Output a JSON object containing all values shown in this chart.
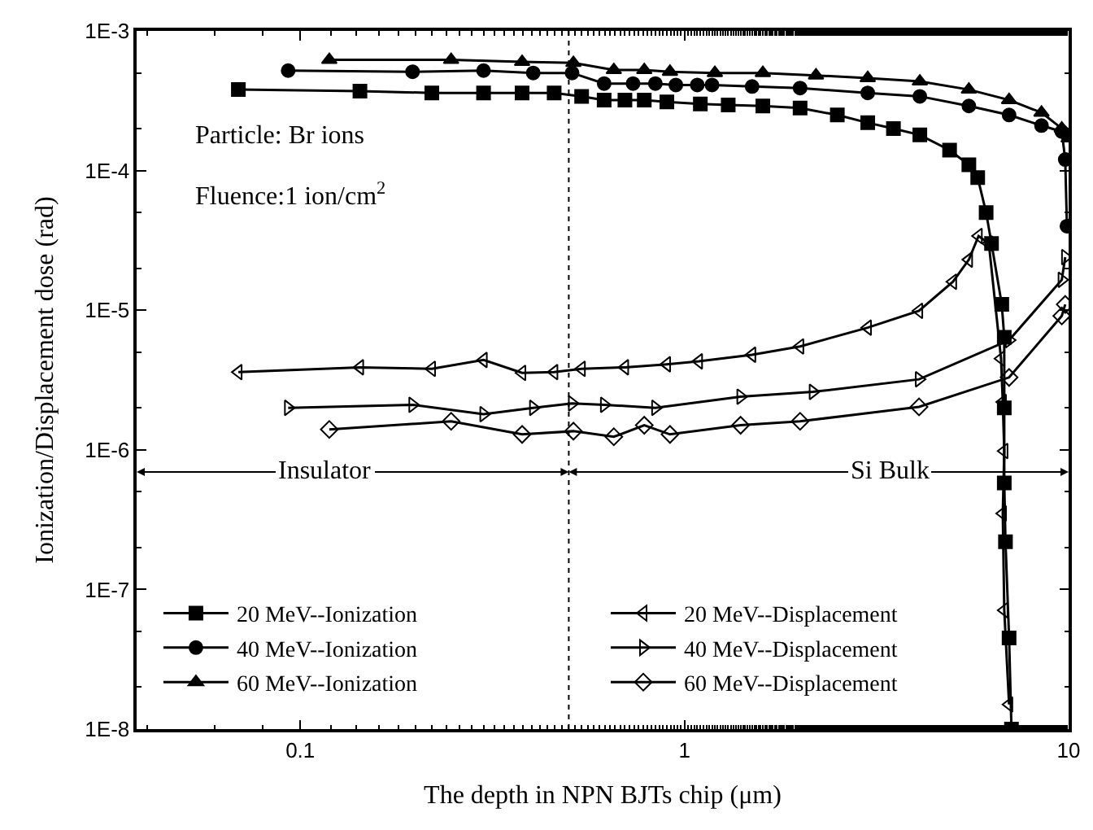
{
  "chart_data": {
    "type": "line",
    "xlabel": "The depth in NPN BJTs chip (μm)",
    "ylabel": "Ionization/Displacement dose (rad)",
    "log": "xy",
    "xlim": [
      0.0375,
      10
    ],
    "ylim": [
      1e-08,
      0.001
    ],
    "xticks": [
      0.1,
      1,
      10
    ],
    "yticks": [
      {
        "value": 1e-08,
        "label": "1E-8"
      },
      {
        "value": 1e-07,
        "label": "1E-7"
      },
      {
        "value": 1e-06,
        "label": "1E-6"
      },
      {
        "value": 1e-05,
        "label": "1E-5"
      },
      {
        "value": 0.0001,
        "label": "1E-4"
      },
      {
        "value": 0.001,
        "label": "1E-3"
      }
    ],
    "legend": "bottom",
    "line_style": "solid",
    "series": [
      {
        "name": "20 MeV--Ionization",
        "color": "#000000",
        "marker": "square",
        "x": [
          0.069,
          0.143,
          0.22,
          0.3,
          0.378,
          0.458,
          0.54,
          0.618,
          0.7,
          0.786,
          0.9,
          1.1,
          1.3,
          1.6,
          2.0,
          2.5,
          3.0,
          3.5,
          4.1,
          4.9,
          5.5,
          5.8,
          6.1,
          6.3,
          6.7,
          6.8,
          6.8,
          6.8,
          6.85,
          7.0,
          7.1
        ],
        "values": [
          0.00038,
          0.00037,
          0.00036,
          0.00036,
          0.00036,
          0.00036,
          0.00034,
          0.00032,
          0.00032,
          0.00032,
          0.00031,
          0.0003,
          0.000295,
          0.00029,
          0.00028,
          0.00025,
          0.00022,
          0.0002,
          0.00018,
          0.00014,
          0.00011,
          8.9e-05,
          5e-05,
          3e-05,
          1.1e-05,
          6.4e-06,
          2e-06,
          5.8e-07,
          2.2e-07,
          4.5e-08,
          1e-08
        ]
      },
      {
        "name": "40 MeV--Ionization",
        "color": "#000000",
        "marker": "circle",
        "x": [
          0.093,
          0.196,
          0.3,
          0.404,
          0.51,
          0.618,
          0.735,
          0.84,
          0.95,
          1.08,
          1.18,
          1.5,
          2.0,
          3.0,
          4.1,
          5.5,
          7.0,
          8.5,
          9.6,
          9.8,
          9.9
        ],
        "values": [
          0.00052,
          0.00051,
          0.00052,
          0.0005,
          0.0005,
          0.00042,
          0.00042,
          0.00042,
          0.00041,
          0.00041,
          0.00041,
          0.0004,
          0.00039,
          0.00036,
          0.00034,
          0.00029,
          0.00025,
          0.00021,
          0.00019,
          0.00012,
          4e-05
        ]
      },
      {
        "name": "60 MeV--Ionization",
        "color": "#000000",
        "marker": "triangle",
        "x": [
          0.119,
          0.247,
          0.378,
          0.514,
          0.655,
          0.786,
          0.917,
          1.2,
          1.6,
          2.2,
          3.0,
          4.1,
          5.5,
          7.0,
          8.5,
          9.6,
          10
        ],
        "values": [
          0.00062,
          0.00062,
          0.0006,
          0.00059,
          0.000525,
          0.000525,
          0.00051,
          0.0005,
          0.0005,
          0.00048,
          0.00046,
          0.000435,
          0.00038,
          0.00032,
          0.00026,
          0.0002,
          0.00017
        ]
      },
      {
        "name": "20 MeV--Displacement",
        "color": "#000000",
        "marker": "triangle-left-open",
        "x": [
          0.069,
          0.143,
          0.22,
          0.3,
          0.378,
          0.458,
          0.54,
          0.7,
          0.9,
          1.09,
          1.5,
          2.0,
          3.0,
          4.08,
          5.0,
          5.5,
          5.83,
          6.2,
          6.67,
          6.74,
          6.8,
          6.74,
          6.8,
          7.0
        ],
        "values": [
          3.6e-06,
          3.9e-06,
          3.8e-06,
          4.4e-06,
          3.56e-06,
          3.6e-06,
          3.8e-06,
          3.9e-06,
          4.1e-06,
          4.3e-06,
          4.8e-06,
          5.5e-06,
          7.5e-06,
          9.9e-06,
          1.6e-05,
          2.3e-05,
          3.4e-05,
          3e-05,
          4.5e-06,
          2.2e-06,
          9.8e-07,
          3.5e-07,
          7.1e-08,
          1.5e-08
        ]
      },
      {
        "name": "40 MeV--Displacement",
        "color": "#000000",
        "marker": "triangle-right-open",
        "x": [
          0.093,
          0.196,
          0.3,
          0.404,
          0.51,
          0.618,
          0.84,
          1.4,
          2.16,
          4.08,
          7.0,
          9.6,
          9.8
        ],
        "values": [
          2e-06,
          2.1e-06,
          1.8e-06,
          2e-06,
          2.15e-06,
          2.1e-06,
          2e-06,
          2.4e-06,
          2.6e-06,
          3.2e-06,
          6.1e-06,
          1.65e-05,
          2.4e-05
        ]
      },
      {
        "name": "60 MeV--Displacement",
        "color": "#000000",
        "marker": "diamond-open",
        "x": [
          0.119,
          0.247,
          0.378,
          0.514,
          0.655,
          0.786,
          0.917,
          1.4,
          2.0,
          4.08,
          7.0,
          9.6,
          9.8
        ],
        "values": [
          1.4e-06,
          1.6e-06,
          1.29e-06,
          1.36e-06,
          1.24e-06,
          1.5e-06,
          1.29e-06,
          1.5e-06,
          1.6e-06,
          2.03e-06,
          3.3e-06,
          9.1e-06,
          1.1e-05
        ]
      }
    ],
    "ref_lines": [
      {
        "axis": "x",
        "value": 0.5,
        "line_style": "dotted",
        "color": "#000000"
      }
    ],
    "annotations": [
      {
        "text": "Insulator",
        "x": 0.5,
        "y": 6.95e-07
      },
      {
        "text": "Si Bulk",
        "x": 0.5,
        "y": 6.95e-07
      },
      "Particle: Br ions",
      "Fluence:1 ion/cm$^{2}$"
    ]
  }
}
